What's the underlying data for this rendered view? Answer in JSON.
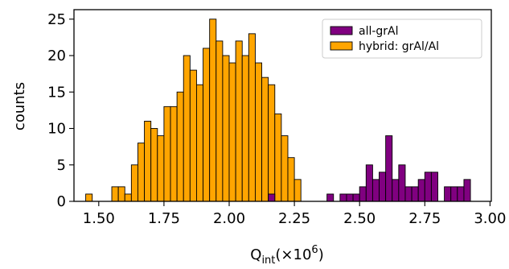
{
  "chart_data": {
    "type": "bar",
    "subtype": "histogram",
    "xlabel_main": "Q",
    "xlabel_sub": "int",
    "xlabel_suffix": "(×10",
    "xlabel_exp": "6",
    "xlabel_close": ")",
    "ylabel": "counts",
    "xlim": [
      1.405,
      3.005
    ],
    "ylim": [
      0,
      26.3
    ],
    "xticks": [
      1.5,
      1.75,
      2.0,
      2.25,
      2.5,
      2.75,
      3.0
    ],
    "xtick_labels": [
      "1.50",
      "1.75",
      "2.00",
      "2.25",
      "2.50",
      "2.75",
      "3.00"
    ],
    "yticks": [
      0,
      5,
      10,
      15,
      20,
      25
    ],
    "ytick_labels": [
      "0",
      "5",
      "10",
      "15",
      "20",
      "25"
    ],
    "grid": false,
    "legend_position": "top-right",
    "bin_width": 0.025,
    "series": [
      {
        "name": "hybrid: grAl/Al",
        "color": "#ffa500",
        "bins": [
          {
            "x": 1.45,
            "count": 1
          },
          {
            "x": 1.55,
            "count": 2
          },
          {
            "x": 1.575,
            "count": 2
          },
          {
            "x": 1.6,
            "count": 1
          },
          {
            "x": 1.625,
            "count": 5
          },
          {
            "x": 1.65,
            "count": 8
          },
          {
            "x": 1.675,
            "count": 11
          },
          {
            "x": 1.7,
            "count": 10
          },
          {
            "x": 1.725,
            "count": 9
          },
          {
            "x": 1.75,
            "count": 13
          },
          {
            "x": 1.775,
            "count": 13
          },
          {
            "x": 1.8,
            "count": 15
          },
          {
            "x": 1.825,
            "count": 20
          },
          {
            "x": 1.85,
            "count": 18
          },
          {
            "x": 1.875,
            "count": 16
          },
          {
            "x": 1.9,
            "count": 21
          },
          {
            "x": 1.925,
            "count": 25
          },
          {
            "x": 1.95,
            "count": 22
          },
          {
            "x": 1.975,
            "count": 20
          },
          {
            "x": 2.0,
            "count": 19
          },
          {
            "x": 2.025,
            "count": 22
          },
          {
            "x": 2.05,
            "count": 20
          },
          {
            "x": 2.075,
            "count": 23
          },
          {
            "x": 2.1,
            "count": 19
          },
          {
            "x": 2.125,
            "count": 17
          },
          {
            "x": 2.15,
            "count": 16
          },
          {
            "x": 2.175,
            "count": 12
          },
          {
            "x": 2.2,
            "count": 9
          },
          {
            "x": 2.225,
            "count": 6
          },
          {
            "x": 2.25,
            "count": 3
          }
        ]
      },
      {
        "name": "all-grAl",
        "color": "#800080",
        "bins": [
          {
            "x": 2.15,
            "count": 1
          },
          {
            "x": 2.375,
            "count": 1
          },
          {
            "x": 2.425,
            "count": 1
          },
          {
            "x": 2.45,
            "count": 1
          },
          {
            "x": 2.475,
            "count": 1
          },
          {
            "x": 2.5,
            "count": 2
          },
          {
            "x": 2.525,
            "count": 5
          },
          {
            "x": 2.55,
            "count": 3
          },
          {
            "x": 2.575,
            "count": 4
          },
          {
            "x": 2.6,
            "count": 9
          },
          {
            "x": 2.625,
            "count": 3
          },
          {
            "x": 2.65,
            "count": 5
          },
          {
            "x": 2.675,
            "count": 2
          },
          {
            "x": 2.7,
            "count": 2
          },
          {
            "x": 2.725,
            "count": 3
          },
          {
            "x": 2.75,
            "count": 4
          },
          {
            "x": 2.775,
            "count": 4
          },
          {
            "x": 2.825,
            "count": 2
          },
          {
            "x": 2.85,
            "count": 2
          },
          {
            "x": 2.875,
            "count": 2
          },
          {
            "x": 2.9,
            "count": 3
          }
        ]
      }
    ],
    "legend_order": [
      "all-grAl",
      "hybrid: grAl/Al"
    ]
  }
}
